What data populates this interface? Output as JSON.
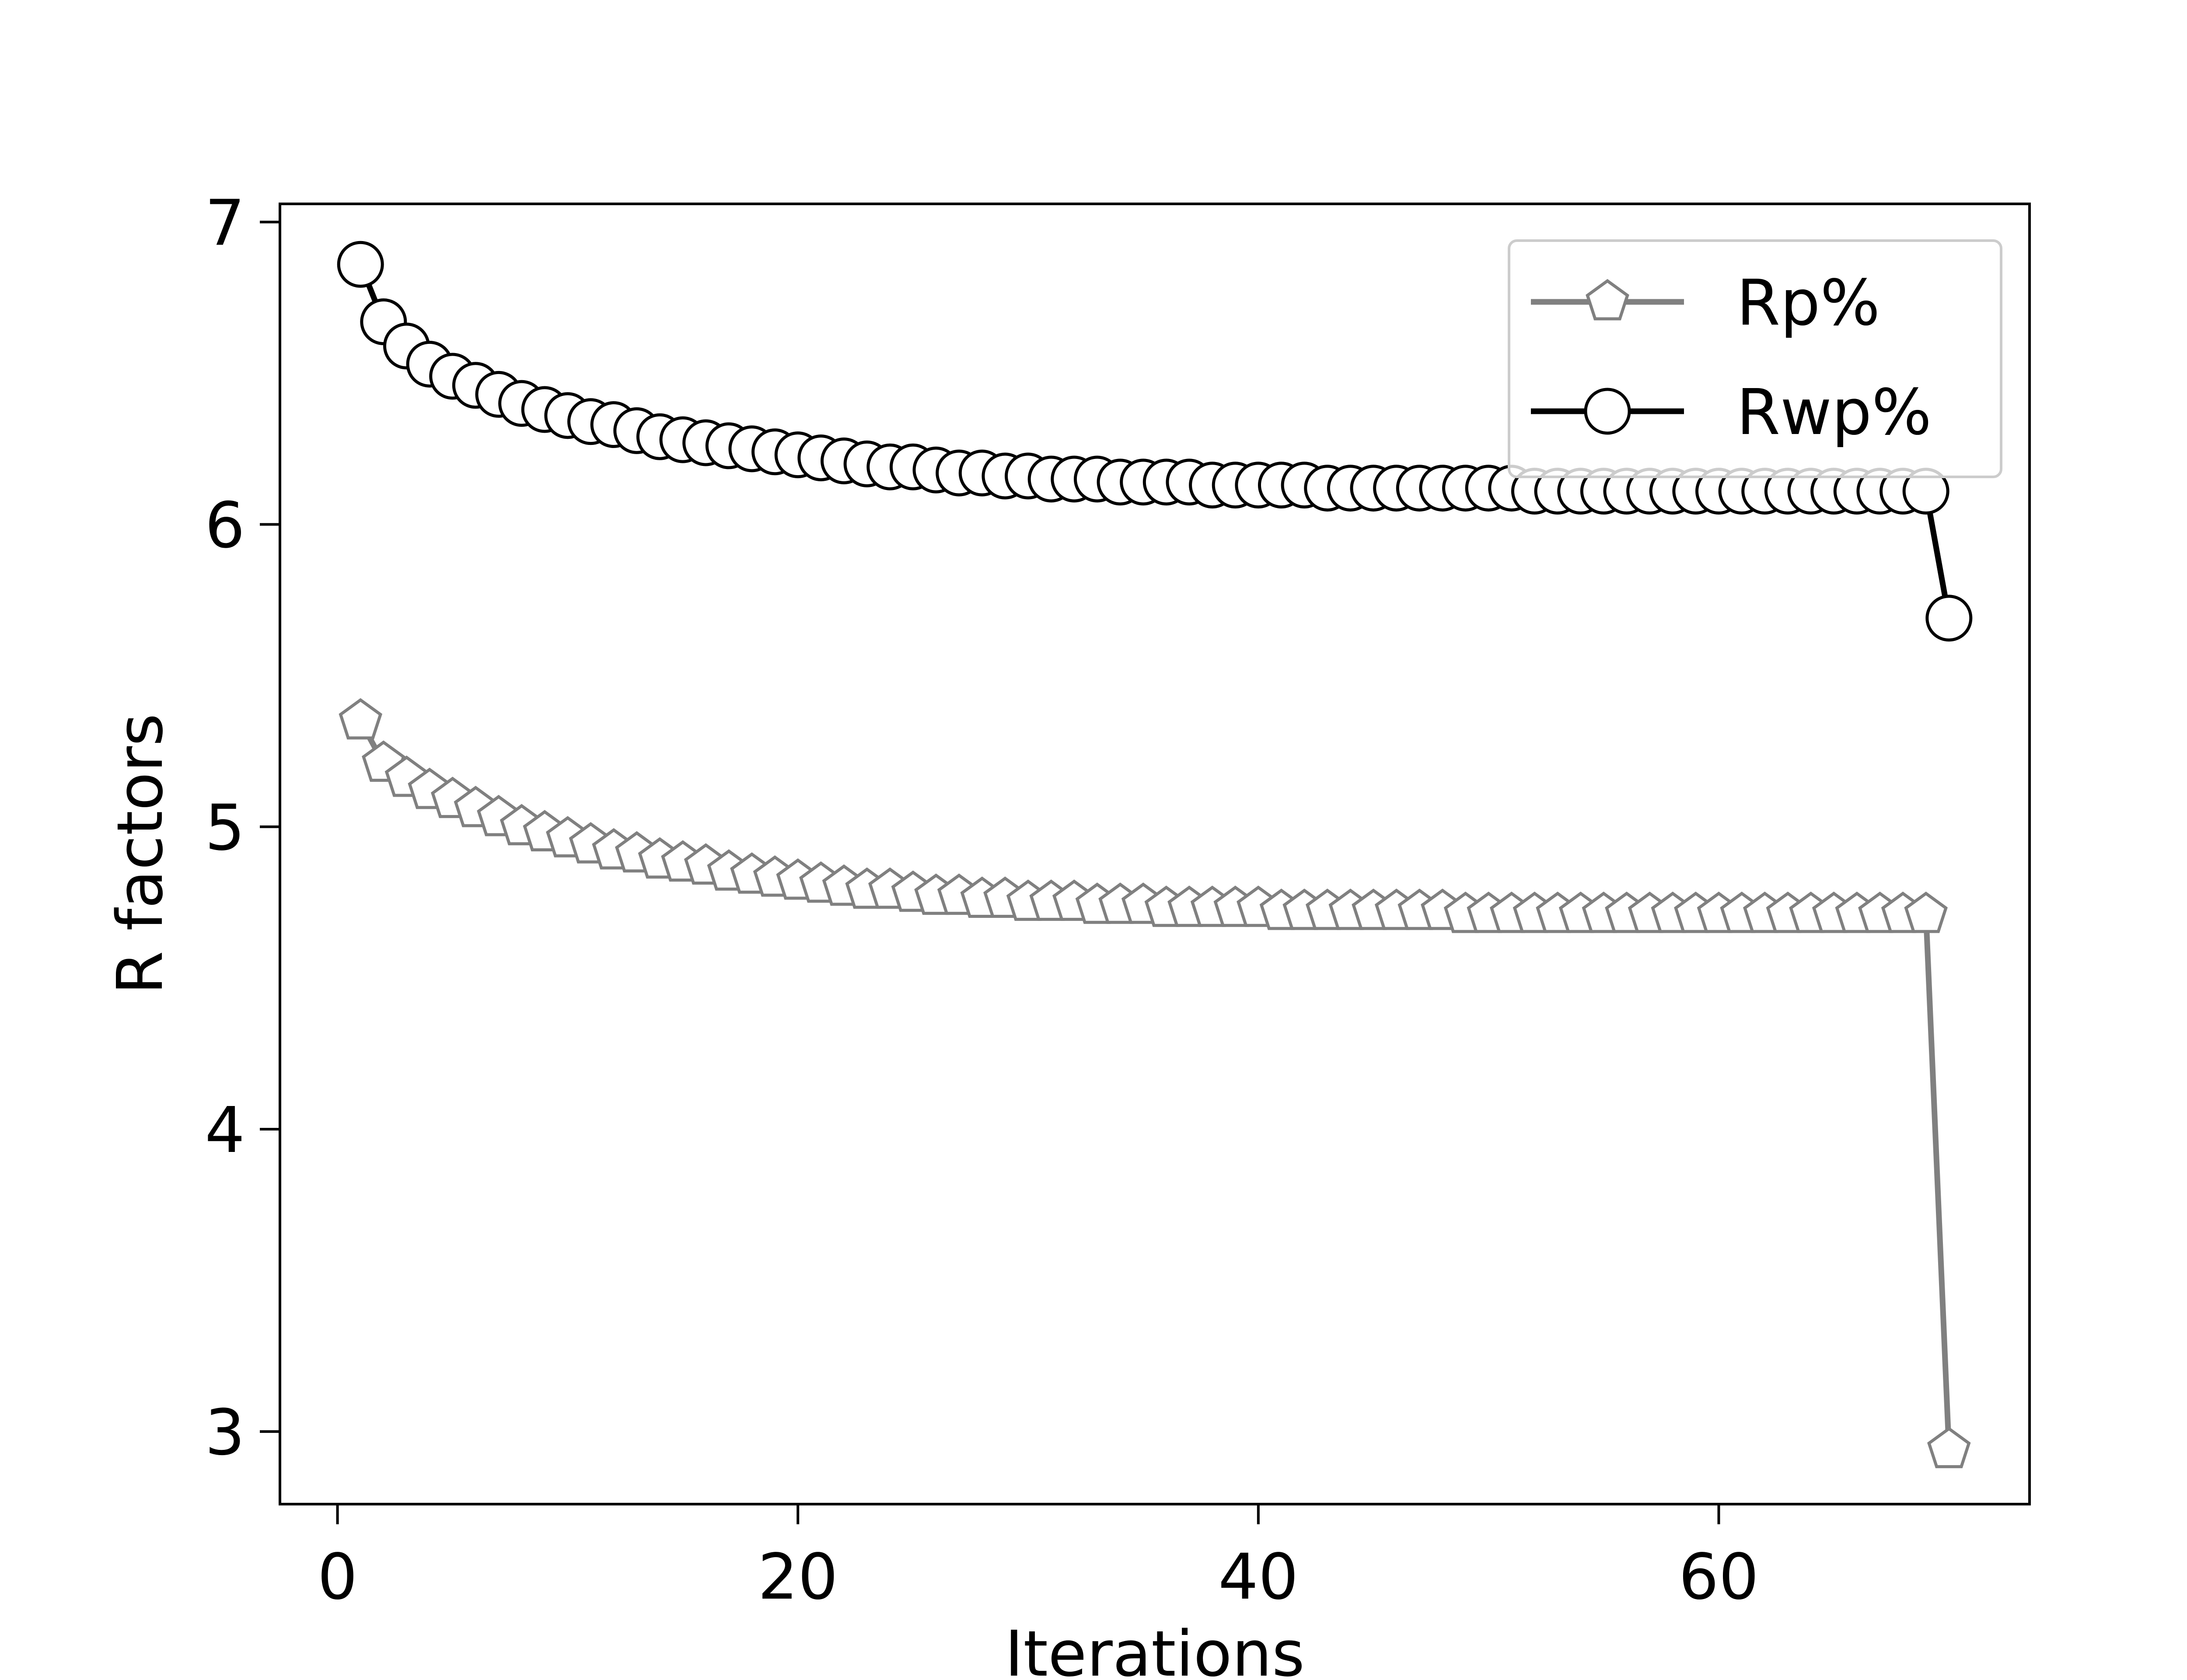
{
  "chart_data": {
    "type": "line",
    "title": "",
    "xlabel": "Iterations",
    "ylabel": "R factors",
    "xlim": [
      -2.5,
      73.5
    ],
    "ylim": [
      2.76,
      7.06
    ],
    "xticks": [
      0,
      20,
      40,
      60
    ],
    "yticks": [
      3,
      4,
      5,
      6,
      7
    ],
    "grid": false,
    "legend_position": "upper right",
    "series": [
      {
        "name": "Rp%",
        "color": "#808080",
        "marker": "pentagon",
        "x": [
          1,
          2,
          3,
          4,
          5,
          6,
          7,
          8,
          9,
          10,
          11,
          12,
          13,
          14,
          15,
          16,
          17,
          18,
          19,
          20,
          21,
          22,
          23,
          24,
          25,
          26,
          27,
          28,
          29,
          30,
          31,
          32,
          33,
          34,
          35,
          36,
          37,
          38,
          39,
          40,
          41,
          42,
          43,
          44,
          45,
          46,
          47,
          48,
          49,
          50,
          51,
          52,
          53,
          54,
          55,
          56,
          57,
          58,
          59,
          60,
          61,
          62,
          63,
          64,
          65,
          66,
          67,
          68,
          69,
          70
        ],
        "values": [
          5.35,
          5.21,
          5.16,
          5.12,
          5.09,
          5.06,
          5.03,
          5.0,
          4.98,
          4.96,
          4.94,
          4.92,
          4.91,
          4.89,
          4.88,
          4.87,
          4.85,
          4.84,
          4.83,
          4.82,
          4.81,
          4.8,
          4.79,
          4.79,
          4.78,
          4.77,
          4.77,
          4.76,
          4.76,
          4.75,
          4.75,
          4.75,
          4.74,
          4.74,
          4.74,
          4.73,
          4.73,
          4.73,
          4.73,
          4.73,
          4.72,
          4.72,
          4.72,
          4.72,
          4.72,
          4.72,
          4.72,
          4.72,
          4.71,
          4.71,
          4.71,
          4.71,
          4.71,
          4.71,
          4.71,
          4.71,
          4.71,
          4.71,
          4.71,
          4.71,
          4.71,
          4.71,
          4.71,
          4.71,
          4.71,
          4.71,
          4.71,
          4.71,
          4.71,
          2.94
        ]
      },
      {
        "name": "Rwp%",
        "color": "#000000",
        "marker": "circle",
        "x": [
          1,
          2,
          3,
          4,
          5,
          6,
          7,
          8,
          9,
          10,
          11,
          12,
          13,
          14,
          15,
          16,
          17,
          18,
          19,
          20,
          21,
          22,
          23,
          24,
          25,
          26,
          27,
          28,
          29,
          30,
          31,
          32,
          33,
          34,
          35,
          36,
          37,
          38,
          39,
          40,
          41,
          42,
          43,
          44,
          45,
          46,
          47,
          48,
          49,
          50,
          51,
          52,
          53,
          54,
          55,
          56,
          57,
          58,
          59,
          60,
          61,
          62,
          63,
          64,
          65,
          66,
          67,
          68,
          69,
          70
        ],
        "values": [
          6.86,
          6.67,
          6.59,
          6.53,
          6.49,
          6.46,
          6.43,
          6.4,
          6.38,
          6.36,
          6.34,
          6.33,
          6.31,
          6.29,
          6.28,
          6.27,
          6.26,
          6.25,
          6.24,
          6.23,
          6.22,
          6.21,
          6.2,
          6.19,
          6.19,
          6.18,
          6.17,
          6.17,
          6.16,
          6.16,
          6.15,
          6.15,
          6.15,
          6.14,
          6.14,
          6.14,
          6.14,
          6.13,
          6.13,
          6.13,
          6.13,
          6.13,
          6.12,
          6.12,
          6.12,
          6.12,
          6.12,
          6.12,
          6.12,
          6.12,
          6.12,
          6.11,
          6.11,
          6.11,
          6.11,
          6.11,
          6.11,
          6.11,
          6.11,
          6.11,
          6.11,
          6.11,
          6.11,
          6.11,
          6.11,
          6.11,
          6.11,
          6.11,
          6.11,
          5.69
        ]
      }
    ]
  }
}
